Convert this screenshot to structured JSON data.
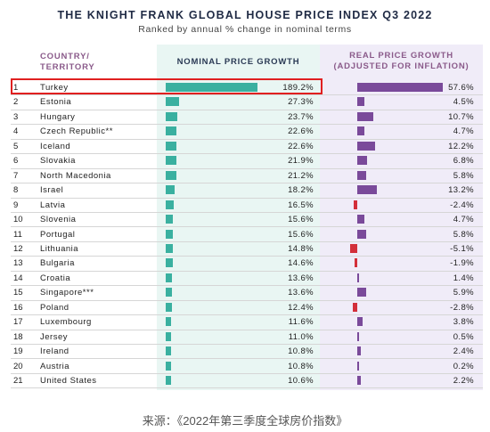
{
  "title": "THE KNIGHT FRANK GLOBAL HOUSE PRICE INDEX Q3 2022",
  "subtitle": "Ranked by annual % change in nominal terms",
  "headers": {
    "country_line1": "COUNTRY/",
    "country_line2": "TERRITORY",
    "nominal": "NOMINAL PRICE GROWTH",
    "real_line1": "REAL PRICE GROWTH",
    "real_line2": "(ADJUSTED FOR INFLATION)"
  },
  "source": "来源：《2022年第三季度全球房价指数》",
  "chart_data": {
    "type": "bar",
    "title": "THE KNIGHT FRANK GLOBAL HOUSE PRICE INDEX Q3 2022",
    "subtitle": "Ranked by annual % change in nominal terms",
    "categories": [
      "Turkey",
      "Estonia",
      "Hungary",
      "Czech Republic**",
      "Iceland",
      "Slovakia",
      "North Macedonia",
      "Israel",
      "Latvia",
      "Slovenia",
      "Portugal",
      "Lithuania",
      "Bulgaria",
      "Croatia",
      "Singapore***",
      "Poland",
      "Luxembourg",
      "Jersey",
      "Ireland",
      "Austria",
      "United States"
    ],
    "ranks": [
      "1",
      "2",
      "3",
      "4",
      "5",
      "6",
      "7",
      "8",
      "9",
      "10",
      "11",
      "12",
      "13",
      "14",
      "15",
      "16",
      "17",
      "18",
      "19",
      "20",
      "21"
    ],
    "series": [
      {
        "name": "NOMINAL PRICE GROWTH",
        "values": [
          189.2,
          27.3,
          23.7,
          22.6,
          22.6,
          21.9,
          21.2,
          18.2,
          16.5,
          15.6,
          15.6,
          14.8,
          14.6,
          13.6,
          13.6,
          12.4,
          11.6,
          11.0,
          10.8,
          10.8,
          10.6
        ],
        "labels": [
          "189.2%",
          "27.3%",
          "23.7%",
          "22.6%",
          "22.6%",
          "21.9%",
          "21.2%",
          "18.2%",
          "16.5%",
          "15.6%",
          "15.6%",
          "14.8%",
          "14.6%",
          "13.6%",
          "13.6%",
          "12.4%",
          "11.6%",
          "11.0%",
          "10.8%",
          "10.8%",
          "10.6%"
        ]
      },
      {
        "name": "REAL PRICE GROWTH",
        "values": [
          57.6,
          4.5,
          10.7,
          4.7,
          12.2,
          6.8,
          5.8,
          13.2,
          -2.4,
          4.7,
          5.8,
          -5.1,
          -1.9,
          1.4,
          5.9,
          -2.8,
          3.8,
          0.5,
          2.4,
          0.2,
          2.2
        ],
        "labels": [
          "57.6%",
          "4.5%",
          "10.7%",
          "4.7%",
          "12.2%",
          "6.8%",
          "5.8%",
          "13.2%",
          "-2.4%",
          "4.7%",
          "5.8%",
          "-5.1%",
          "-1.9%",
          "1.4%",
          "5.9%",
          "-2.8%",
          "3.8%",
          "0.5%",
          "2.4%",
          "0.2%",
          "2.2%"
        ]
      }
    ],
    "colors": {
      "nominal": "#3ab0a0",
      "real_positive": "#7a4a9a",
      "real_negative": "#d32f3a",
      "highlight": "#e02020"
    },
    "highlighted_row": "Turkey"
  }
}
